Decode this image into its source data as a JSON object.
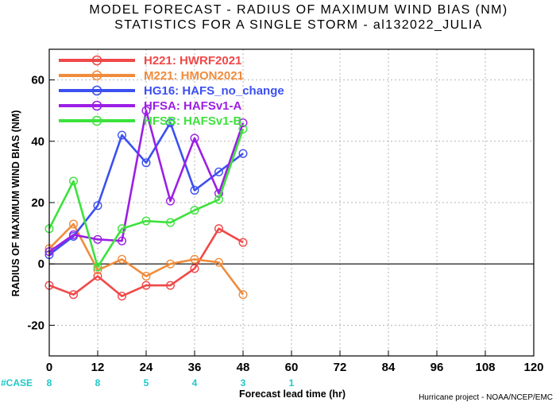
{
  "chart_data": {
    "type": "line",
    "title_line1": "MODEL FORECAST - RADIUS OF MAXIMUM WIND BIAS (NM)",
    "title_line2": "STATISTICS FOR A SINGLE STORM - al132022_JULIA",
    "xlabel": "Forecast lead time (hr)",
    "ylabel": "RADIUS OF MAXIMUM WIND BIAS (NM)",
    "xlim": [
      0,
      120
    ],
    "ylim": [
      -30,
      70
    ],
    "xticks": [
      0,
      12,
      24,
      36,
      48,
      60,
      72,
      84,
      96,
      108,
      120
    ],
    "yticks": [
      -20,
      0,
      20,
      40,
      60
    ],
    "x": [
      0,
      6,
      12,
      18,
      24,
      30,
      36,
      42,
      48
    ],
    "grid": true,
    "legend_position": "top-left",
    "series": [
      {
        "name": "H221:  HWRF2021",
        "color": "#f04848",
        "values": [
          -7,
          -10,
          -4,
          -10.5,
          -7,
          -7,
          -1.5,
          11.5,
          7
        ]
      },
      {
        "name": "M221:  HMON2021",
        "color": "#f08c3c",
        "values": [
          5,
          13,
          -2,
          1.5,
          -4,
          0,
          1.5,
          0.5,
          -10
        ]
      },
      {
        "name": "HG16:  HAFS_no_change",
        "color": "#3c50f0",
        "values": [
          3,
          9,
          19,
          42,
          33,
          46,
          24,
          30,
          36
        ]
      },
      {
        "name": "HFSA:  HAFSv1-A",
        "color": "#9c1ee6",
        "values": [
          4,
          9.5,
          8,
          7.5,
          50,
          20.5,
          41,
          23,
          46
        ]
      },
      {
        "name": "HFSB:  HAFSv1-B",
        "color": "#3ce23c",
        "values": [
          11.5,
          27,
          -1,
          11.5,
          14,
          13.5,
          17.5,
          21,
          44
        ]
      }
    ],
    "case_label": "#CASE",
    "case_counts": [
      {
        "x": 0,
        "n": "8"
      },
      {
        "x": 12,
        "n": "8"
      },
      {
        "x": 24,
        "n": "5"
      },
      {
        "x": 36,
        "n": "4"
      },
      {
        "x": 48,
        "n": "3"
      },
      {
        "x": 60,
        "n": "1"
      }
    ],
    "credit": "Hurricane project - NOAA/NCEP/EMC",
    "colors": {
      "case_count": "#1ec8c8",
      "axis": "#000000",
      "grid": "#b4b4b4"
    }
  }
}
